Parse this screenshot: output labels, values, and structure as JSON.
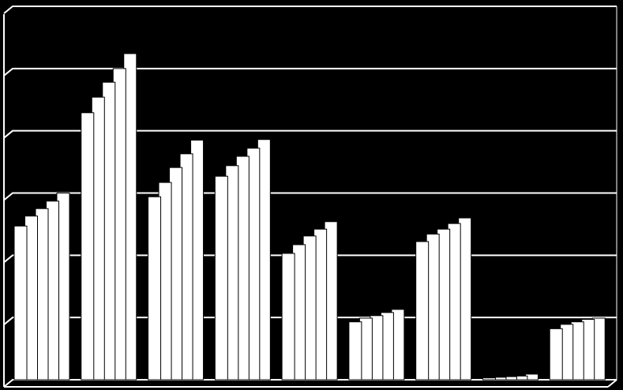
{
  "chart_data": {
    "type": "bar",
    "categories": [
      null,
      null,
      null,
      null,
      null,
      null,
      null,
      null,
      null
    ],
    "series": [
      {
        "color": "#ffffff",
        "values": [
          2.47,
          4.29,
          2.94,
          3.27,
          2.03,
          0.93,
          2.22,
          0.03,
          0.82
        ]
      },
      {
        "color": "#ffffff",
        "values": [
          2.63,
          4.54,
          3.17,
          3.44,
          2.17,
          0.99,
          2.34,
          0.04,
          0.89
        ]
      },
      {
        "color": "#ffffff",
        "values": [
          2.75,
          4.78,
          3.41,
          3.59,
          2.31,
          1.03,
          2.42,
          0.05,
          0.93
        ]
      },
      {
        "color": "#ffffff",
        "values": [
          2.87,
          5.0,
          3.63,
          3.72,
          2.42,
          1.08,
          2.51,
          0.06,
          0.97
        ]
      },
      {
        "color": "#ffffff",
        "values": [
          3.0,
          5.24,
          3.85,
          3.86,
          2.54,
          1.13,
          2.6,
          0.09,
          0.99
        ]
      }
    ],
    "ylim": [
      0,
      6
    ],
    "yticks": [
      0,
      1,
      2,
      3,
      4,
      5,
      6
    ],
    "grid": true
  }
}
